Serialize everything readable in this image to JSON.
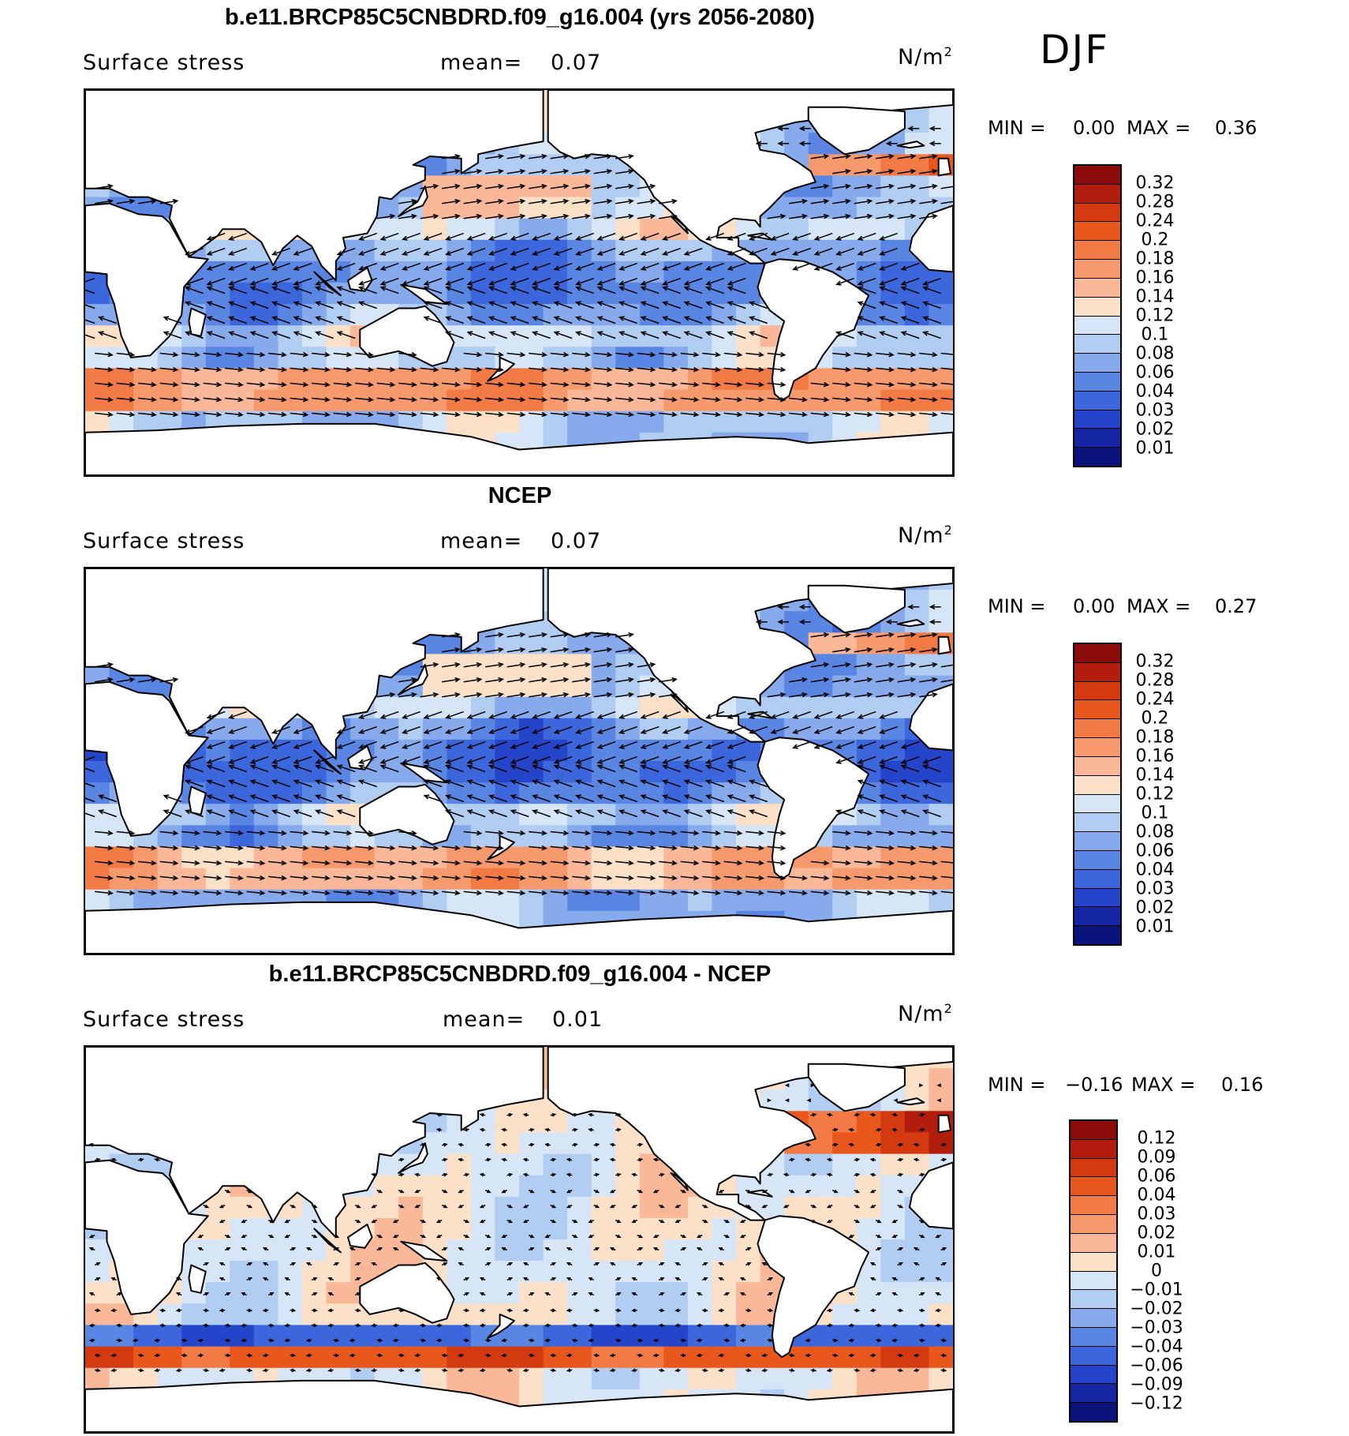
{
  "season": "DJF",
  "panels": [
    {
      "title": "b.e11.BRCP85C5CNBDRD.f09_g16.004 (yrs 2056-2080)",
      "variable": "Surface stress",
      "mean_label": "mean=",
      "mean_value": "0.07",
      "units_base": "N/m",
      "units_exp": "2",
      "min_label": "MIN =",
      "min_value": "0.00",
      "max_label": "MAX =",
      "max_value": "0.36",
      "colorbar_labels": [
        "0.32",
        "0.28",
        "0.24",
        "0.2",
        "0.18",
        "0.16",
        "0.14",
        "0.12",
        "0.1",
        "0.08",
        "0.06",
        "0.04",
        "0.03",
        "0.02",
        "0.01"
      ],
      "colorbar_colors": [
        "#8b0a0a",
        "#b21d0d",
        "#d33a10",
        "#e8571c",
        "#f27a45",
        "#f6996d",
        "#fab898",
        "#fde0c8",
        "#d6e6f7",
        "#b1cdf2",
        "#86aaec",
        "#5a86e3",
        "#3c67dc",
        "#2445c9",
        "#1426a3",
        "#0a137c"
      ]
    },
    {
      "title": "NCEP",
      "variable": "Surface stress",
      "mean_label": "mean=",
      "mean_value": "0.07",
      "units_base": "N/m",
      "units_exp": "2",
      "min_label": "MIN =",
      "min_value": "0.00",
      "max_label": "MAX =",
      "max_value": "0.27",
      "colorbar_labels": [
        "0.32",
        "0.28",
        "0.24",
        "0.2",
        "0.18",
        "0.16",
        "0.14",
        "0.12",
        "0.1",
        "0.08",
        "0.06",
        "0.04",
        "0.03",
        "0.02",
        "0.01"
      ],
      "colorbar_colors": [
        "#8b0a0a",
        "#b21d0d",
        "#d33a10",
        "#e8571c",
        "#f27a45",
        "#f6996d",
        "#fab898",
        "#fde0c8",
        "#d6e6f7",
        "#b1cdf2",
        "#86aaec",
        "#5a86e3",
        "#3c67dc",
        "#2445c9",
        "#1426a3",
        "#0a137c"
      ]
    },
    {
      "title": "b.e11.BRCP85C5CNBDRD.f09_g16.004 - NCEP",
      "variable": "Surface stress",
      "mean_label": "mean=",
      "mean_value": "0.01",
      "units_base": "N/m",
      "units_exp": "2",
      "min_label": "MIN =",
      "min_value": "−0.16",
      "max_label": "MAX =",
      "max_value": "0.16",
      "colorbar_labels": [
        "0.12",
        "0.09",
        "0.06",
        "0.04",
        "0.03",
        "0.02",
        "0.01",
        "0",
        "−0.01",
        "−0.02",
        "−0.03",
        "−0.04",
        "−0.06",
        "−0.09",
        "−0.12"
      ],
      "colorbar_colors": [
        "#8b0a0a",
        "#b21d0d",
        "#d33a10",
        "#e8571c",
        "#f27a45",
        "#f6996d",
        "#fab898",
        "#fde0c8",
        "#d6e6f7",
        "#b1cdf2",
        "#86aaec",
        "#5a86e3",
        "#3c67dc",
        "#2445c9",
        "#1426a3",
        "#0a137c"
      ]
    }
  ],
  "map_colors": {
    "land": "#ffffff",
    "coast": "#000000",
    "vector": "#000000"
  }
}
